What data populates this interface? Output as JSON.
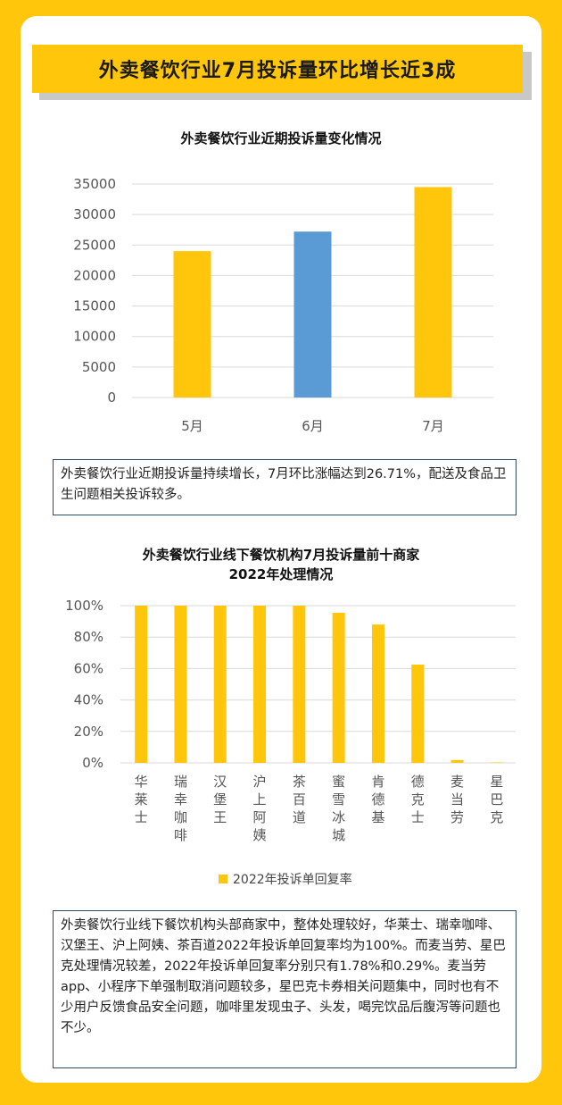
{
  "header": {
    "title": "外卖餐饮行业7月投诉量环比增长近3成"
  },
  "colors": {
    "background": "#FFC60B",
    "bar_yellow": "#FFC60B",
    "bar_blue": "#5B9BD5",
    "note_border": "#2F4A6B"
  },
  "chart_data": [
    {
      "type": "bar",
      "title": "外卖餐饮行业近期投诉量变化情况",
      "categories": [
        "5月",
        "6月",
        "7月"
      ],
      "values": [
        24000,
        27200,
        34500
      ],
      "bar_colors": [
        "#FFC60B",
        "#5B9BD5",
        "#FFC60B"
      ],
      "ylim": [
        0,
        35000
      ],
      "yticks": [
        "0",
        "5000",
        "10000",
        "15000",
        "20000",
        "25000",
        "30000",
        "35000"
      ],
      "grid": true
    },
    {
      "type": "bar",
      "title": [
        "外卖餐饮行业线下餐饮机构7月投诉量前十商家",
        "2022年处理情况"
      ],
      "categories": [
        "华莱士",
        "瑞幸咖啡",
        "汉堡王",
        "沪上阿姨",
        "茶百道",
        "蜜雪冰城",
        "肯德基",
        "德克士",
        "麦当劳",
        "星巴克"
      ],
      "series": [
        {
          "name": "2022年投诉单回复率",
          "values": [
            100,
            100,
            100,
            100,
            100,
            95.5,
            88,
            62.5,
            1.78,
            0.29
          ]
        }
      ],
      "ylim": [
        0,
        100
      ],
      "yticks": [
        "0%",
        "20%",
        "40%",
        "60%",
        "80%",
        "100%"
      ],
      "legend_position": "bottom",
      "grid": true
    }
  ],
  "notes": {
    "note1": "外卖餐饮行业近期投诉量持续增长，7月环比涨幅达到26.71%，配送及食品卫生问题相关投诉较多。",
    "note2": "外卖餐饮行业线下餐饮机构头部商家中，整体处理较好，华莱士、瑞幸咖啡、汉堡王、沪上阿姨、茶百道2022年投诉单回复率均为100%。而麦当劳、星巴克处理情况较差，2022年投诉单回复率分别只有1.78%和0.29%。麦当劳app、小程序下单强制取消问题较多，星巴克卡券相关问题集中，同时也有不少用户反馈食品安全问题，咖啡里发现虫子、头发，喝完饮品后腹泻等问题也不少。"
  }
}
